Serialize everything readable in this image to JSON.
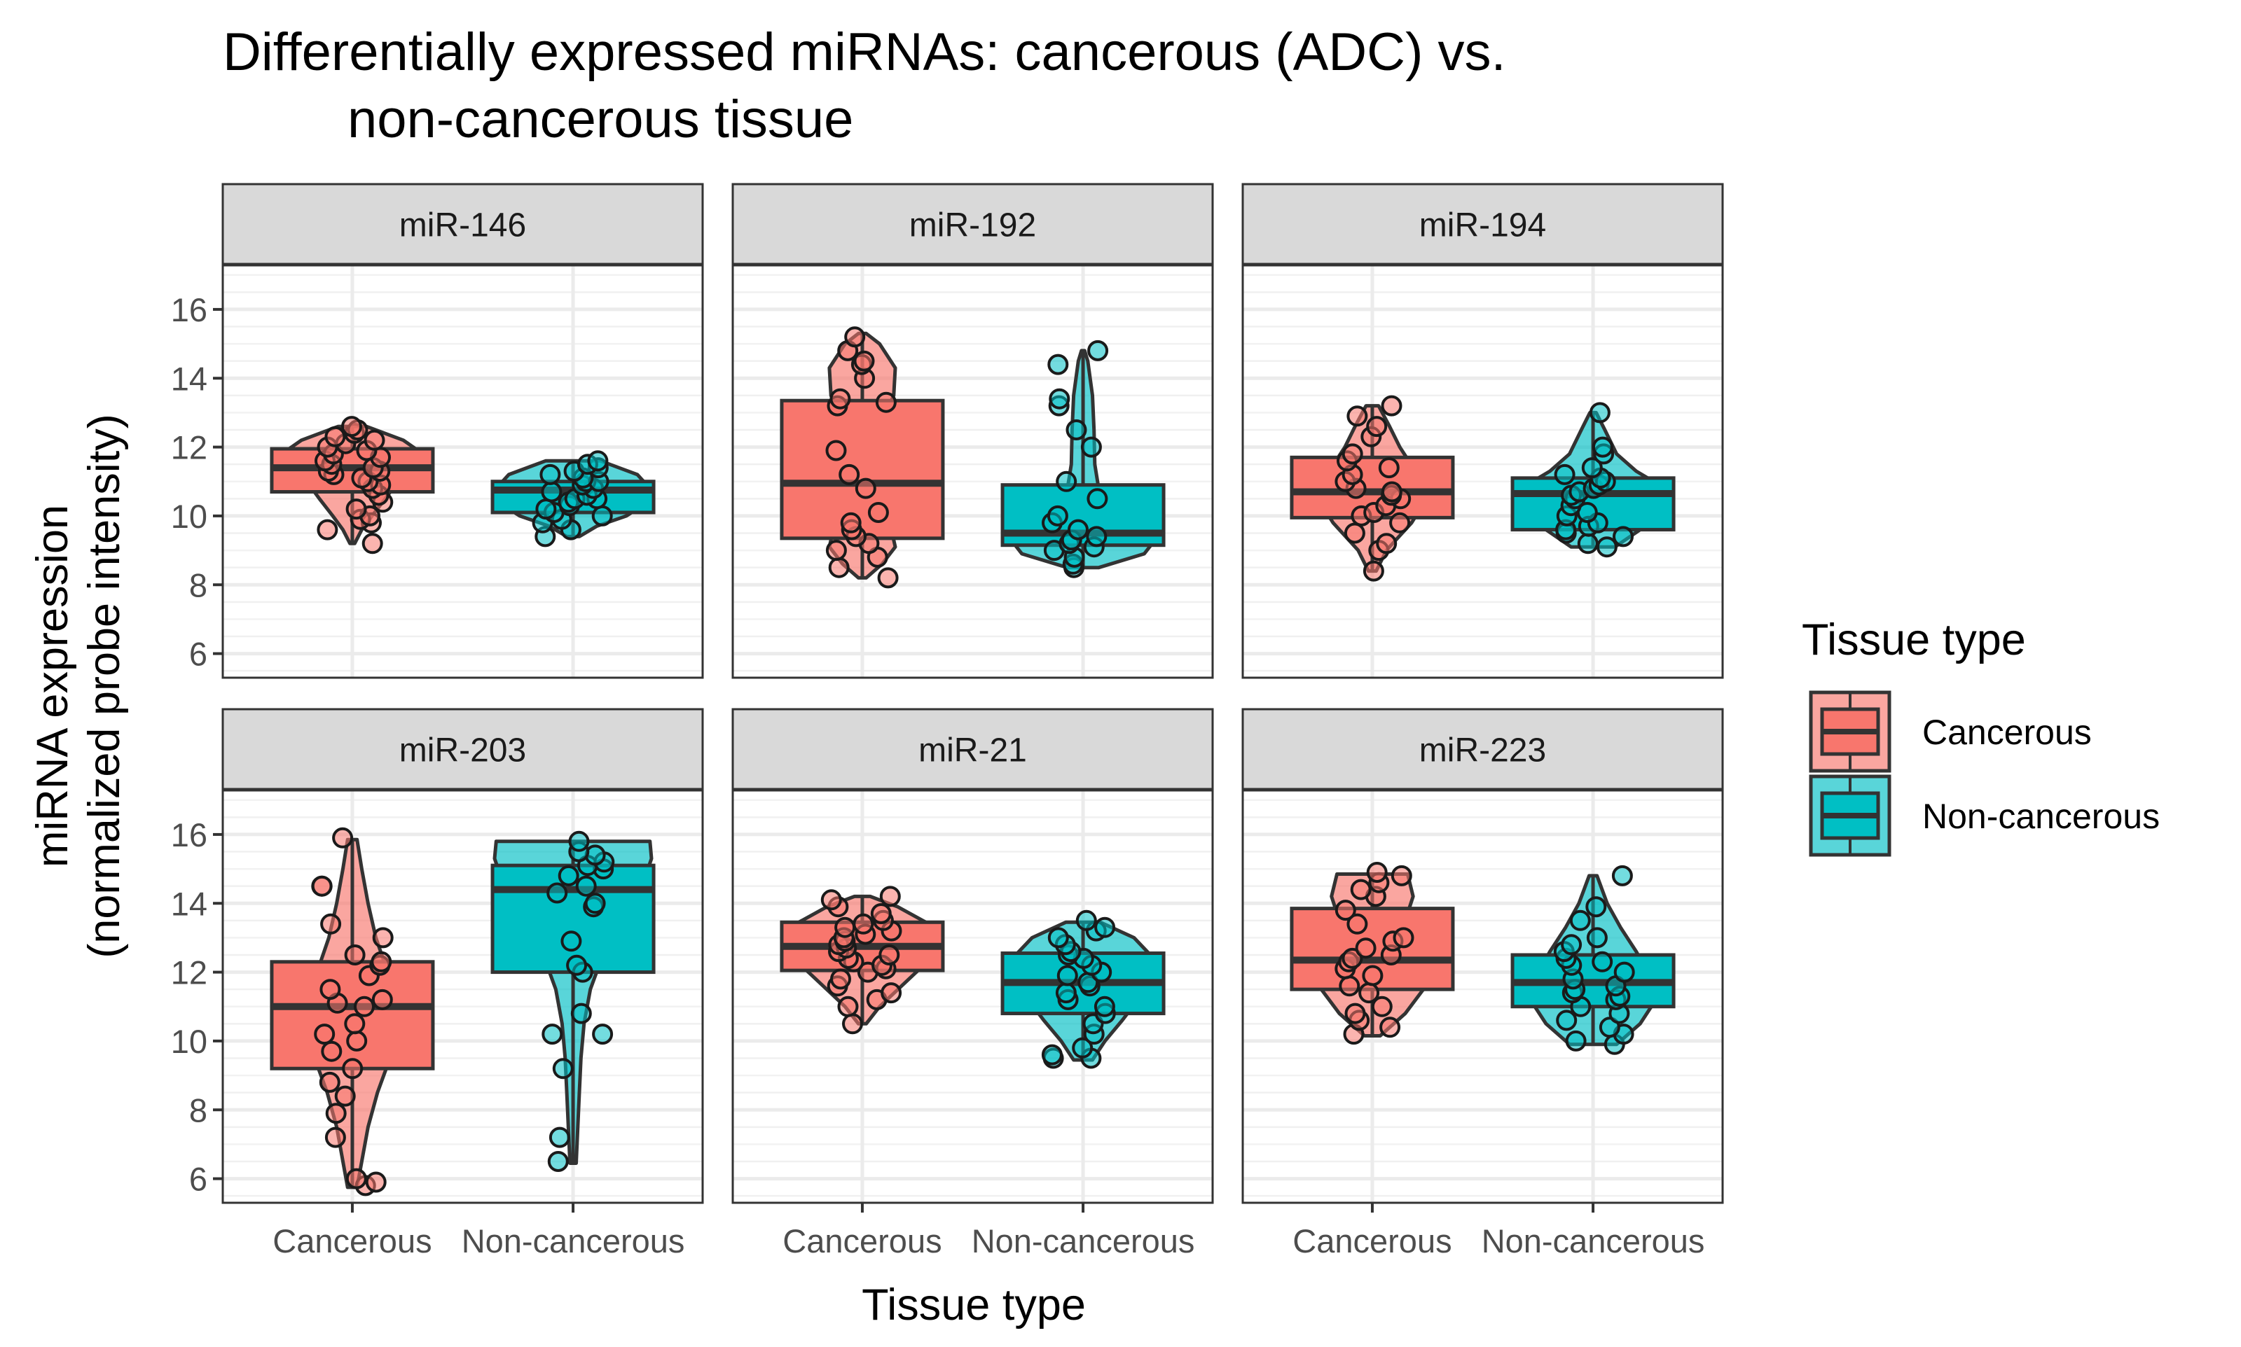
{
  "chart_data": {
    "type": "violin-box-jitter",
    "title_lines": [
      "Differentially expressed miRNAs: cancerous (ADC) vs.",
      "non-cancerous tissue"
    ],
    "xlabel": "Tissue type",
    "ylabel_lines": [
      "miRNA expression",
      "(normalized probe intensity)"
    ],
    "categories": [
      "Cancerous",
      "Non-cancerous"
    ],
    "ylim": [
      5.3,
      17.3
    ],
    "yticks": [
      6,
      8,
      10,
      12,
      14,
      16
    ],
    "grid": true,
    "legend": {
      "title": "Tissue type",
      "position": "right",
      "entries": [
        {
          "label": "Cancerous",
          "color": "#F8766D"
        },
        {
          "label": "Non-cancerous",
          "color": "#00BFC4"
        }
      ]
    },
    "colors": {
      "Cancerous": "#F8766D",
      "Non-cancerous": "#00BFC4",
      "outline": "#333333",
      "strip": "#d9d9d9"
    },
    "panels": [
      {
        "name": "miR-146",
        "groups": [
          {
            "category": "Cancerous",
            "box": {
              "q1": 10.7,
              "median": 11.4,
              "q3": 11.95
            },
            "violin": [
              [
                9.2,
                0.03
              ],
              [
                9.6,
                0.12
              ],
              [
                10.0,
                0.25
              ],
              [
                10.5,
                0.42
              ],
              [
                11.0,
                0.58
              ],
              [
                11.4,
                0.8
              ],
              [
                11.8,
                0.9
              ],
              [
                12.2,
                0.65
              ],
              [
                12.6,
                0.18
              ]
            ],
            "points": [
              9.2,
              9.6,
              9.8,
              9.9,
              10.0,
              10.2,
              10.4,
              10.6,
              10.8,
              10.9,
              11.0,
              11.1,
              11.2,
              11.3,
              11.3,
              11.4,
              11.5,
              11.6,
              11.7,
              11.8,
              11.9,
              12.0,
              12.1,
              12.2,
              12.3,
              12.4,
              12.5,
              12.6
            ]
          },
          {
            "category": "Non-cancerous",
            "box": {
              "q1": 10.1,
              "median": 10.75,
              "q3": 11.0
            },
            "violin": [
              [
                9.4,
                0.08
              ],
              [
                9.7,
                0.3
              ],
              [
                10.0,
                0.68
              ],
              [
                10.4,
                0.95
              ],
              [
                10.8,
                0.98
              ],
              [
                11.2,
                0.82
              ],
              [
                11.6,
                0.35
              ]
            ],
            "points": [
              9.4,
              9.6,
              9.8,
              9.9,
              10.0,
              10.1,
              10.2,
              10.3,
              10.4,
              10.5,
              10.5,
              10.6,
              10.7,
              10.8,
              10.9,
              11.0,
              11.0,
              11.1,
              11.2,
              11.3,
              11.4,
              11.5,
              11.6
            ]
          }
        ]
      },
      {
        "name": "miR-192",
        "groups": [
          {
            "category": "Cancerous",
            "box": {
              "q1": 9.35,
              "median": 10.95,
              "q3": 13.35
            },
            "violin": [
              [
                8.2,
                0.05
              ],
              [
                8.6,
                0.25
              ],
              [
                9.1,
                0.42
              ],
              [
                9.8,
                0.35
              ],
              [
                10.6,
                0.2
              ],
              [
                11.5,
                0.17
              ],
              [
                12.5,
                0.2
              ],
              [
                13.5,
                0.4
              ],
              [
                14.3,
                0.42
              ],
              [
                15.0,
                0.22
              ],
              [
                15.3,
                0.05
              ]
            ],
            "points": [
              8.2,
              8.5,
              8.8,
              9.0,
              9.2,
              9.4,
              9.6,
              9.8,
              10.1,
              10.8,
              11.2,
              11.9,
              13.2,
              13.3,
              13.4,
              14.0,
              14.4,
              14.5,
              14.8,
              15.2
            ]
          },
          {
            "category": "Non-cancerous",
            "box": {
              "q1": 9.15,
              "median": 9.5,
              "q3": 10.9
            },
            "violin": [
              [
                8.5,
                0.2
              ],
              [
                8.9,
                0.78
              ],
              [
                9.4,
                0.95
              ],
              [
                9.9,
                0.6
              ],
              [
                10.5,
                0.22
              ],
              [
                11.5,
                0.15
              ],
              [
                12.5,
                0.14
              ],
              [
                13.5,
                0.12
              ],
              [
                14.5,
                0.06
              ],
              [
                14.8,
                0.02
              ]
            ],
            "points": [
              8.5,
              8.6,
              8.8,
              9.0,
              9.1,
              9.2,
              9.3,
              9.4,
              9.6,
              9.8,
              10.0,
              10.5,
              11.0,
              12.0,
              12.5,
              13.2,
              13.4,
              14.4,
              14.8
            ]
          }
        ]
      },
      {
        "name": "miR-194",
        "groups": [
          {
            "category": "Cancerous",
            "box": {
              "q1": 9.95,
              "median": 10.7,
              "q3": 11.7
            },
            "violin": [
              [
                8.4,
                0.05
              ],
              [
                9.0,
                0.18
              ],
              [
                9.8,
                0.5
              ],
              [
                10.6,
                0.72
              ],
              [
                11.3,
                0.55
              ],
              [
                12.0,
                0.35
              ],
              [
                12.6,
                0.22
              ],
              [
                13.2,
                0.08
              ]
            ],
            "points": [
              8.4,
              9.0,
              9.2,
              9.5,
              9.8,
              10.0,
              10.1,
              10.3,
              10.5,
              10.6,
              10.7,
              10.8,
              11.0,
              11.2,
              11.4,
              11.6,
              11.8,
              12.3,
              12.6,
              12.9,
              13.2
            ]
          },
          {
            "category": "Non-cancerous",
            "box": {
              "q1": 9.6,
              "median": 10.65,
              "q3": 11.1
            },
            "violin": [
              [
                9.1,
                0.28
              ],
              [
                9.6,
                0.6
              ],
              [
                10.2,
                0.82
              ],
              [
                10.8,
                0.92
              ],
              [
                11.3,
                0.55
              ],
              [
                11.8,
                0.3
              ],
              [
                12.5,
                0.15
              ],
              [
                13.0,
                0.04
              ]
            ],
            "points": [
              9.1,
              9.2,
              9.4,
              9.5,
              9.6,
              9.7,
              9.8,
              10.0,
              10.1,
              10.3,
              10.5,
              10.6,
              10.7,
              10.8,
              10.9,
              11.0,
              11.1,
              11.2,
              11.4,
              11.8,
              12.0,
              13.0
            ]
          }
        ]
      },
      {
        "name": "miR-203",
        "groups": [
          {
            "category": "Cancerous",
            "box": {
              "q1": 9.2,
              "median": 11.0,
              "q3": 12.3
            },
            "violin": [
              [
                5.75,
                0.06
              ],
              [
                6.5,
                0.12
              ],
              [
                7.5,
                0.2
              ],
              [
                8.5,
                0.32
              ],
              [
                9.5,
                0.48
              ],
              [
                10.5,
                0.62
              ],
              [
                11.2,
                0.58
              ],
              [
                12.0,
                0.45
              ],
              [
                13.0,
                0.3
              ],
              [
                14.0,
                0.2
              ],
              [
                15.0,
                0.12
              ],
              [
                15.85,
                0.06
              ]
            ],
            "points": [
              5.8,
              5.9,
              6.0,
              7.2,
              7.9,
              8.4,
              8.8,
              9.2,
              9.7,
              10.0,
              10.2,
              10.5,
              11.0,
              11.1,
              11.2,
              11.5,
              11.9,
              12.2,
              12.3,
              12.5,
              13.0,
              13.4,
              14.5,
              14.5,
              15.9
            ]
          },
          {
            "category": "Non-cancerous",
            "box": {
              "q1": 12.0,
              "median": 14.4,
              "q3": 15.1
            },
            "violin": [
              [
                6.45,
                0.04
              ],
              [
                7.5,
                0.06
              ],
              [
                8.5,
                0.08
              ],
              [
                9.5,
                0.1
              ],
              [
                10.5,
                0.14
              ],
              [
                11.5,
                0.22
              ],
              [
                12.5,
                0.38
              ],
              [
                13.5,
                0.62
              ],
              [
                14.5,
                0.88
              ],
              [
                15.3,
                1.0
              ],
              [
                15.8,
                0.98
              ]
            ],
            "points": [
              6.5,
              7.2,
              9.2,
              10.2,
              10.2,
              10.8,
              12.0,
              12.2,
              12.9,
              13.9,
              14.0,
              14.3,
              14.5,
              14.8,
              15.0,
              15.1,
              15.2,
              15.4,
              15.5,
              15.8
            ]
          }
        ]
      },
      {
        "name": "miR-21",
        "groups": [
          {
            "category": "Cancerous",
            "box": {
              "q1": 12.05,
              "median": 12.75,
              "q3": 13.45
            },
            "violin": [
              [
                10.5,
                0.05
              ],
              [
                11.0,
                0.22
              ],
              [
                11.6,
                0.5
              ],
              [
                12.2,
                0.78
              ],
              [
                12.8,
                0.92
              ],
              [
                13.4,
                0.85
              ],
              [
                13.9,
                0.45
              ],
              [
                14.2,
                0.1
              ]
            ],
            "points": [
              10.5,
              11.0,
              11.2,
              11.4,
              11.6,
              11.8,
              12.0,
              12.1,
              12.2,
              12.3,
              12.4,
              12.5,
              12.6,
              12.7,
              12.8,
              12.9,
              13.0,
              13.1,
              13.2,
              13.3,
              13.4,
              13.5,
              13.7,
              13.9,
              14.1,
              14.2
            ]
          },
          {
            "category": "Non-cancerous",
            "box": {
              "q1": 10.8,
              "median": 11.7,
              "q3": 12.55
            },
            "violin": [
              [
                9.45,
                0.12
              ],
              [
                10.0,
                0.28
              ],
              [
                10.6,
                0.5
              ],
              [
                11.2,
                0.7
              ],
              [
                11.8,
                0.8
              ],
              [
                12.4,
                0.9
              ],
              [
                13.0,
                0.65
              ],
              [
                13.45,
                0.22
              ]
            ],
            "points": [
              9.5,
              9.5,
              9.6,
              9.8,
              10.2,
              10.5,
              10.8,
              11.0,
              11.2,
              11.4,
              11.6,
              11.7,
              11.9,
              12.0,
              12.2,
              12.4,
              12.5,
              12.6,
              12.8,
              13.0,
              13.2,
              13.3,
              13.5
            ]
          }
        ]
      },
      {
        "name": "miR-223",
        "groups": [
          {
            "category": "Cancerous",
            "box": {
              "q1": 11.5,
              "median": 12.35,
              "q3": 13.85
            },
            "violin": [
              [
                10.15,
                0.1
              ],
              [
                10.8,
                0.42
              ],
              [
                11.5,
                0.65
              ],
              [
                12.2,
                0.8
              ],
              [
                12.9,
                0.55
              ],
              [
                13.5,
                0.42
              ],
              [
                14.2,
                0.52
              ],
              [
                14.85,
                0.45
              ]
            ],
            "points": [
              10.2,
              10.4,
              10.6,
              10.8,
              11.0,
              11.4,
              11.6,
              11.9,
              12.1,
              12.3,
              12.4,
              12.5,
              12.7,
              12.9,
              13.0,
              13.4,
              13.8,
              14.2,
              14.4,
              14.6,
              14.8,
              14.9
            ]
          },
          {
            "category": "Non-cancerous",
            "box": {
              "q1": 11.0,
              "median": 11.7,
              "q3": 12.5
            },
            "violin": [
              [
                9.9,
                0.3
              ],
              [
                10.5,
                0.6
              ],
              [
                11.2,
                0.8
              ],
              [
                11.9,
                0.72
              ],
              [
                12.6,
                0.55
              ],
              [
                13.3,
                0.35
              ],
              [
                14.0,
                0.18
              ],
              [
                14.8,
                0.05
              ]
            ],
            "points": [
              9.9,
              10.0,
              10.2,
              10.4,
              10.6,
              10.8,
              11.0,
              11.2,
              11.3,
              11.4,
              11.5,
              11.6,
              11.8,
              12.0,
              12.2,
              12.3,
              12.4,
              12.6,
              12.8,
              13.0,
              13.5,
              13.9,
              14.8
            ]
          }
        ]
      }
    ]
  }
}
